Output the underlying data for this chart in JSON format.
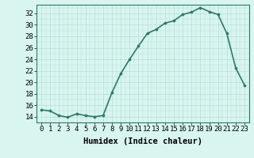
{
  "x": [
    0,
    1,
    2,
    3,
    4,
    5,
    6,
    7,
    8,
    9,
    10,
    11,
    12,
    13,
    14,
    15,
    16,
    17,
    18,
    19,
    20,
    21,
    22,
    23
  ],
  "y": [
    15.2,
    15.0,
    14.2,
    13.9,
    14.5,
    14.2,
    14.0,
    14.2,
    18.2,
    21.5,
    24.0,
    26.3,
    28.5,
    29.2,
    30.3,
    30.7,
    31.8,
    32.2,
    33.0,
    32.3,
    31.8,
    28.5,
    22.5,
    19.5
  ],
  "line_color": "#2d7a6a",
  "marker": "o",
  "marker_size": 2.2,
  "bg_color": "#d8f5f0",
  "grid_color": "#b8ddd8",
  "xlabel": "Humidex (Indice chaleur)",
  "ylim": [
    13.5,
    33.5
  ],
  "xlim": [
    -0.5,
    23.5
  ],
  "yticks": [
    14,
    16,
    18,
    20,
    22,
    24,
    26,
    28,
    30,
    32
  ],
  "xticks": [
    0,
    1,
    2,
    3,
    4,
    5,
    6,
    7,
    8,
    9,
    10,
    11,
    12,
    13,
    14,
    15,
    16,
    17,
    18,
    19,
    20,
    21,
    22,
    23
  ],
  "xlabel_fontsize": 7.5,
  "tick_fontsize": 6.5,
  "line_width": 1.2,
  "font_family": "monospace"
}
